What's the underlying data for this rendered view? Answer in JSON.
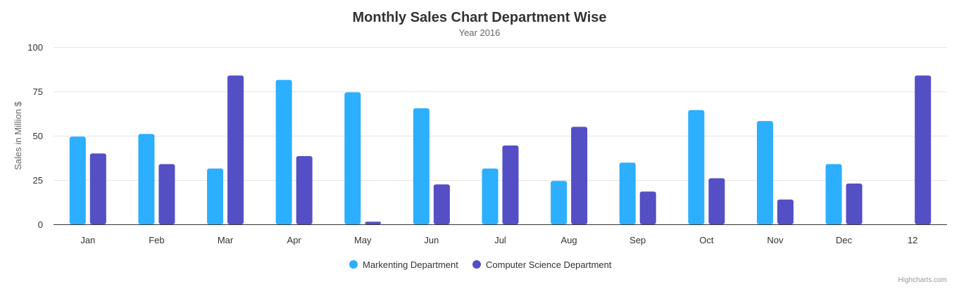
{
  "chart_data": {
    "type": "bar",
    "title": "Monthly Sales Chart Department Wise",
    "subtitle": "Year 2016",
    "xlabel": "",
    "ylabel": "Sales in Million $",
    "ylim": [
      0,
      100
    ],
    "yticks": [
      0,
      25,
      50,
      75,
      100
    ],
    "grid": true,
    "legend_position": "bottom-center",
    "categories": [
      "Jan",
      "Feb",
      "Mar",
      "Apr",
      "May",
      "Jun",
      "Jul",
      "Aug",
      "Sep",
      "Oct",
      "Nov",
      "Dec",
      "12"
    ],
    "series": [
      {
        "name": "Markenting Department",
        "color": "#2caffe",
        "values": [
          49.5,
          51,
          31.5,
          81.5,
          74.5,
          65.5,
          31.5,
          24.5,
          34.8,
          64.5,
          58.3,
          34,
          null
        ]
      },
      {
        "name": "Computer Science Department",
        "color": "#544fc5",
        "values": [
          40,
          34,
          84,
          38.5,
          1.5,
          22.5,
          44.5,
          55,
          18.5,
          26,
          14,
          23,
          84
        ]
      }
    ],
    "credits": "Highcharts.com"
  }
}
